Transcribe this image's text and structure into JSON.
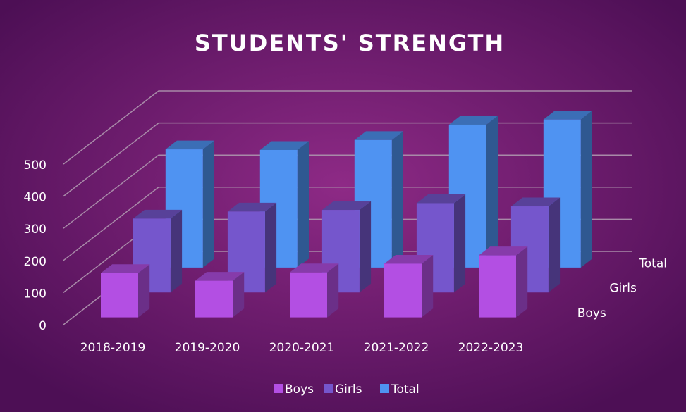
{
  "chart_data": {
    "type": "bar3d",
    "title": "STUDENTS' STRENGTH",
    "categories": [
      "2018-2019",
      "2019-2020",
      "2020-2021",
      "2021-2022",
      "2022-2023"
    ],
    "series": [
      {
        "name": "Boys",
        "color": "#b34fe3",
        "values": [
          138,
          114,
          140,
          167,
          193
        ]
      },
      {
        "name": "Girls",
        "color": "#7556cc",
        "values": [
          230,
          252,
          257,
          278,
          268
        ]
      },
      {
        "name": "Total",
        "color": "#4f93f2",
        "values": [
          368,
          366,
          397,
          445,
          461
        ]
      }
    ],
    "ylim": [
      0,
      500
    ],
    "yticks": [
      0,
      100,
      200,
      300,
      400,
      500
    ],
    "grid": true,
    "legend": "bottom"
  }
}
